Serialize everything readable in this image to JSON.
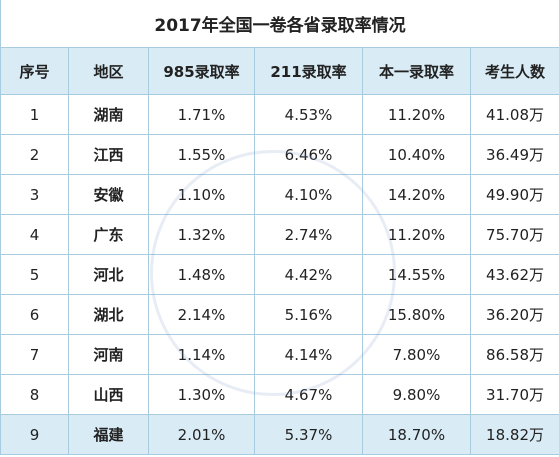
{
  "title": "2017年全国一卷各省录取率情况",
  "table": {
    "header": [
      "序号",
      "地区",
      "985录取率",
      "211录取率",
      "本一录取率",
      "考生人数"
    ],
    "rows": [
      [
        "1",
        "湖南",
        "1.71%",
        "4.53%",
        "11.20%",
        "41.08万"
      ],
      [
        "2",
        "江西",
        "1.55%",
        "6.46%",
        "10.40%",
        "36.49万"
      ],
      [
        "3",
        "安徽",
        "1.10%",
        "4.10%",
        "14.20%",
        "49.90万"
      ],
      [
        "4",
        "广东",
        "1.32%",
        "2.74%",
        "11.20%",
        "75.70万"
      ],
      [
        "5",
        "河北",
        "1.48%",
        "4.42%",
        "14.55%",
        "43.62万"
      ],
      [
        "6",
        "湖北",
        "2.14%",
        "5.16%",
        "15.80%",
        "36.20万"
      ],
      [
        "7",
        "河南",
        "1.14%",
        "4.14%",
        "7.80%",
        "86.58万"
      ],
      [
        "8",
        "山西",
        "1.30%",
        "4.67%",
        "9.80%",
        "31.70万"
      ],
      [
        "9",
        "福建",
        "2.01%",
        "5.37%",
        "18.70%",
        "18.82万"
      ]
    ]
  }
}
